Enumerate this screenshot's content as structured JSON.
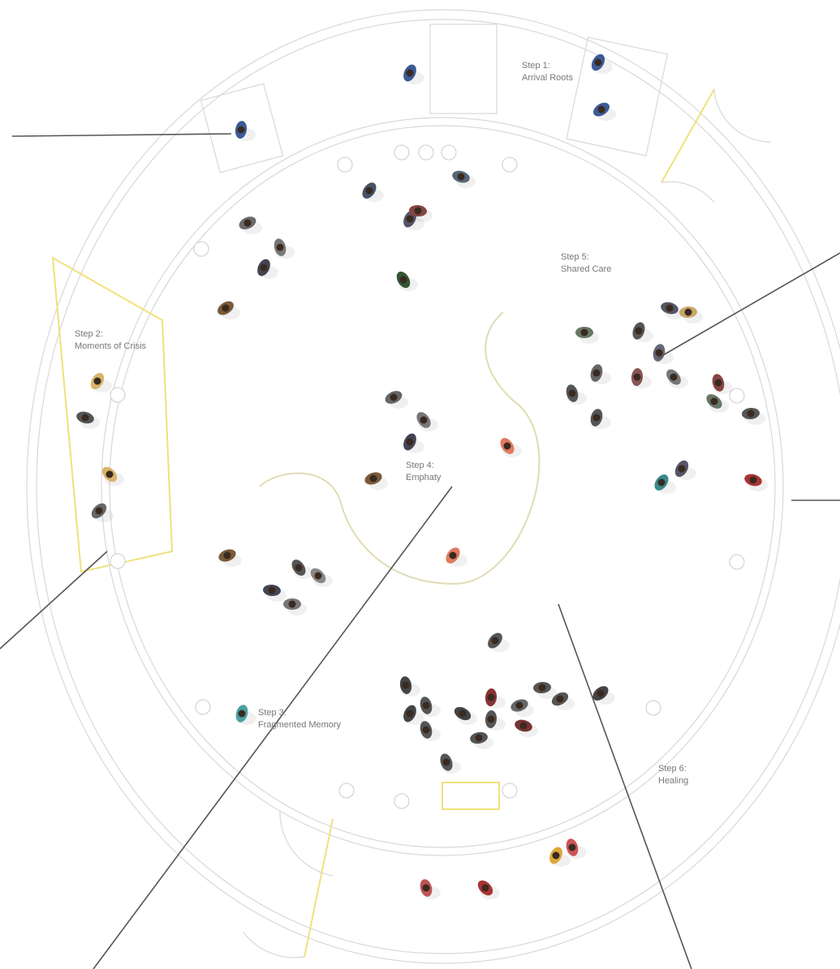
{
  "steps": [
    {
      "step": "Step 1:",
      "name": "Arrival Roots"
    },
    {
      "step": "Step 2:",
      "name": "Moments of Crisis"
    },
    {
      "step": "Step 3:",
      "name": "Fragmented Memory"
    },
    {
      "step": "Step 4:",
      "name": "Emphaty"
    },
    {
      "step": "Step 5:",
      "name": "Shared Care"
    },
    {
      "step": "Step 6:",
      "name": "Healing"
    }
  ]
}
